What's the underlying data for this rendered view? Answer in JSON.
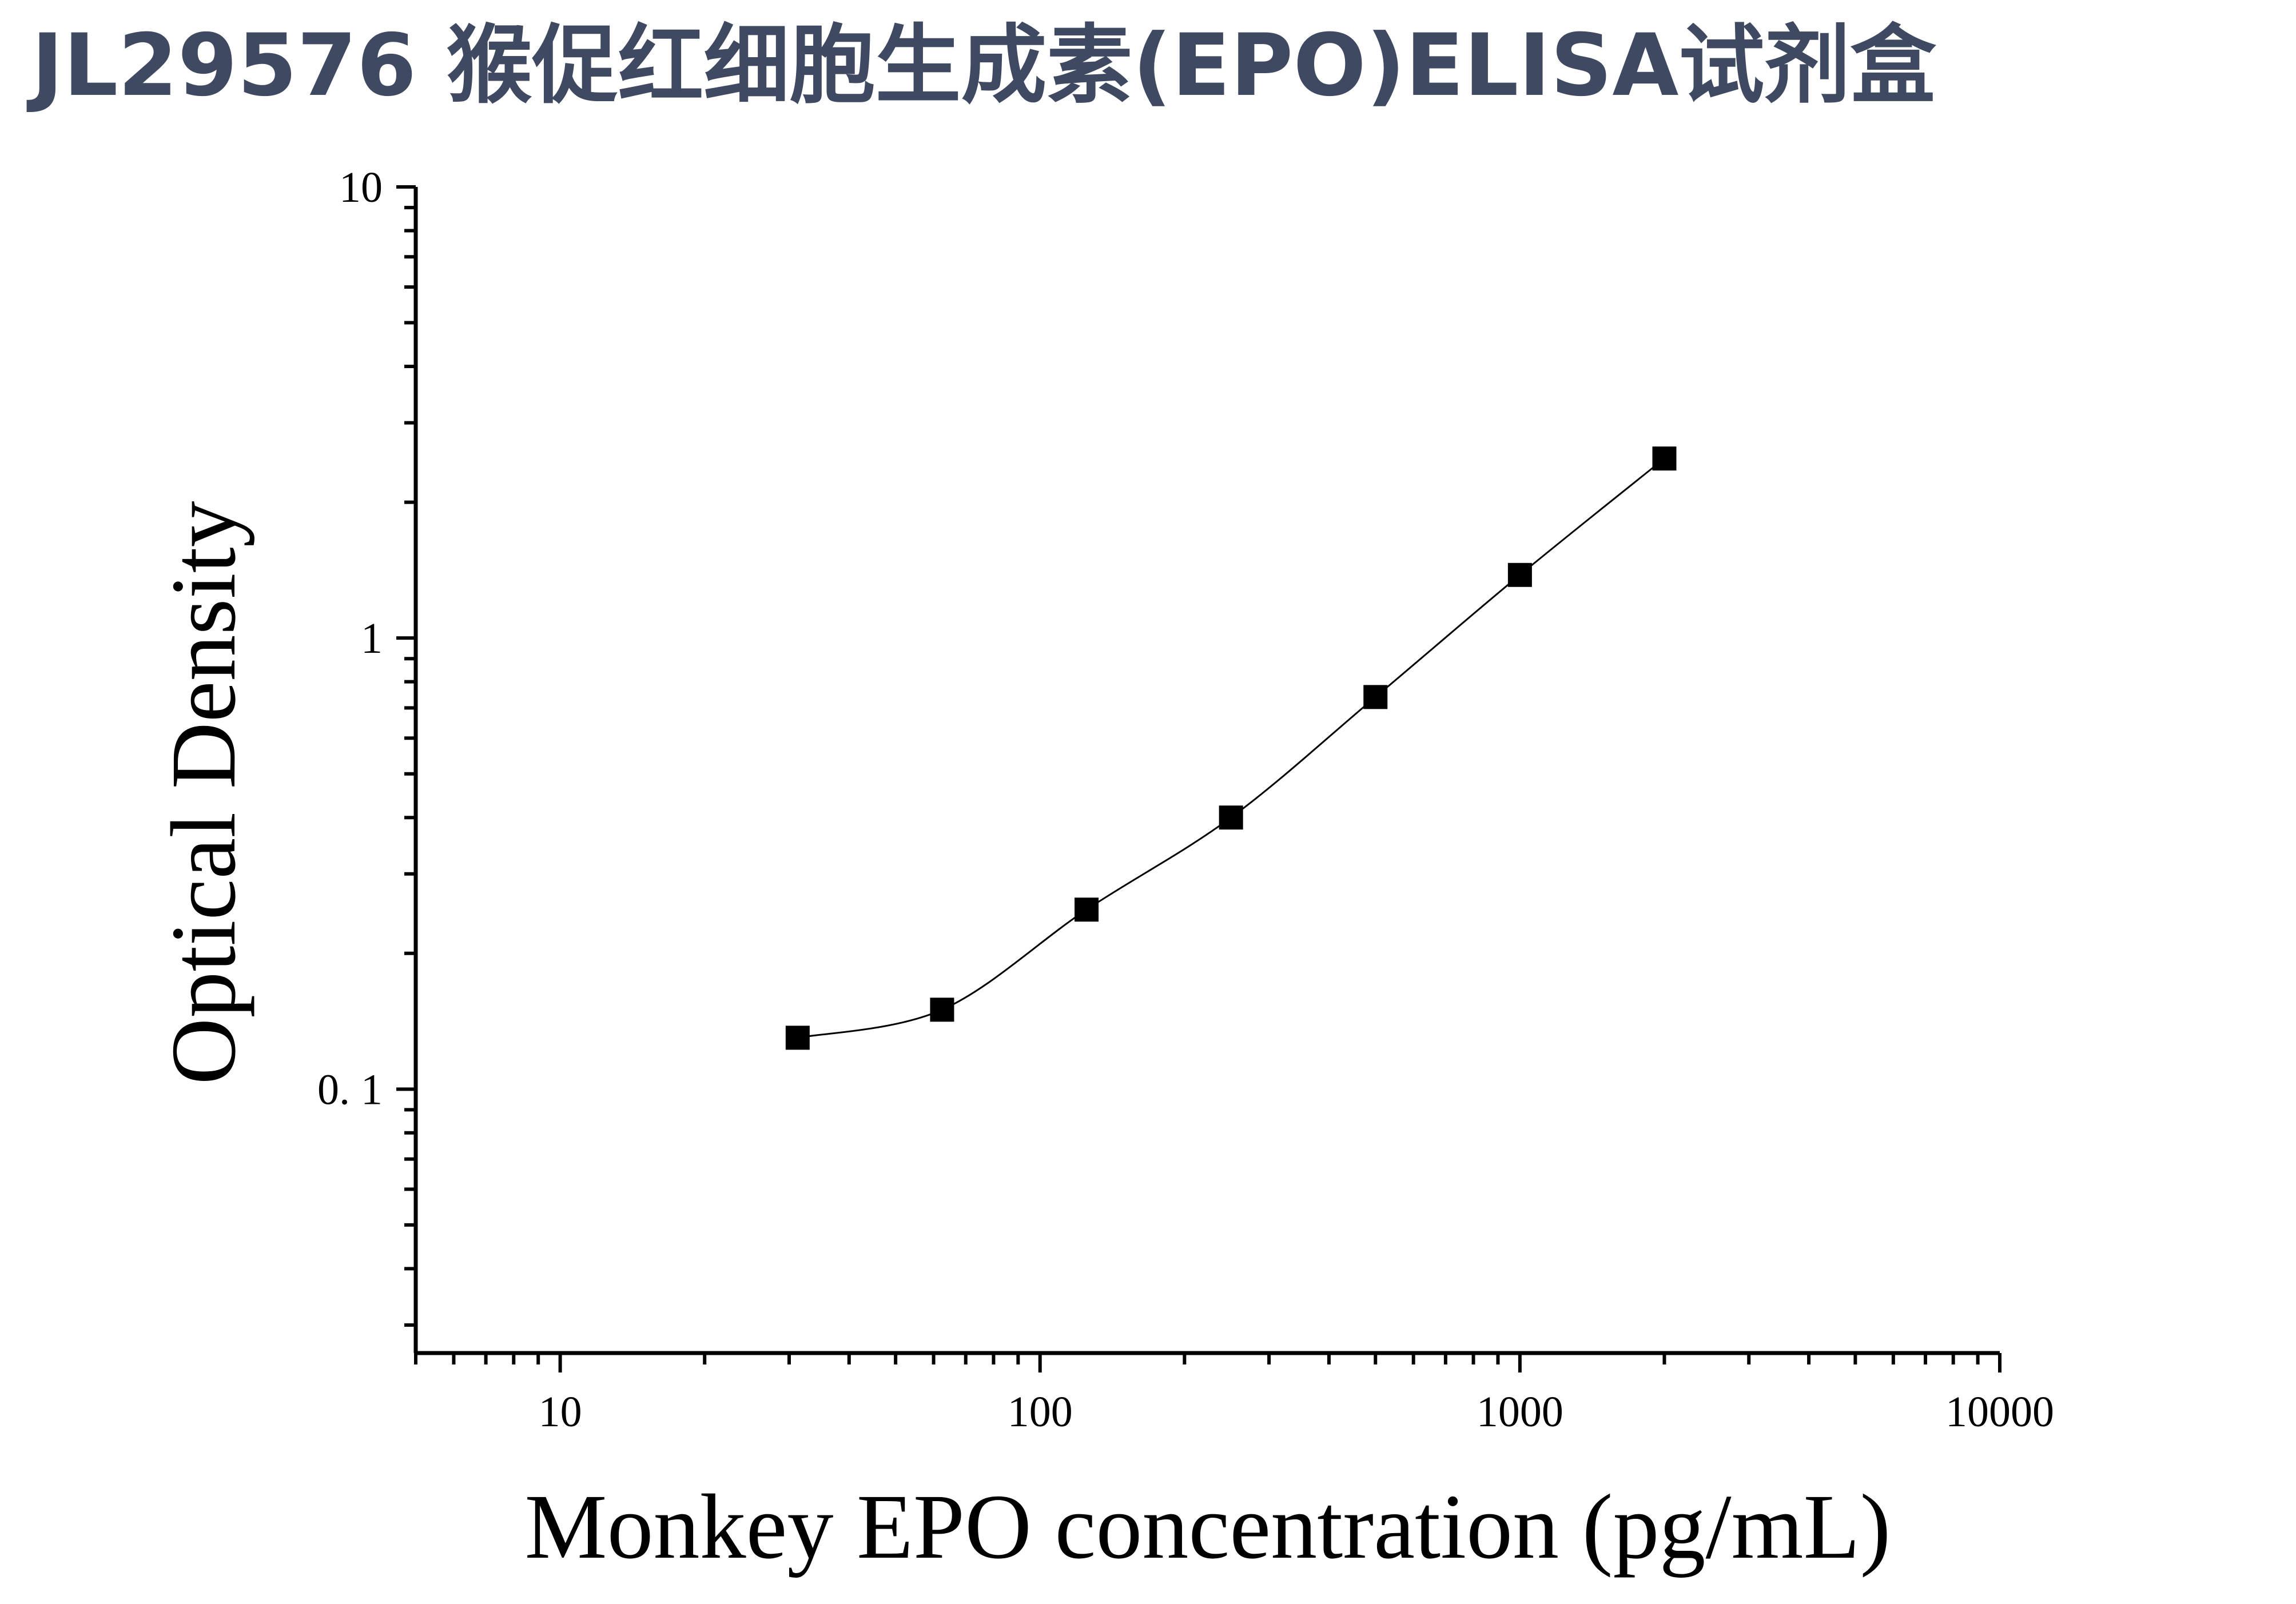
{
  "page_title": "JL29576 猴促红细胞生成素(EPO)ELISA试剂盒",
  "chart_data": {
    "type": "scatter",
    "title": "JL29576 猴促红细胞生成素(EPO)ELISA试剂盒",
    "xlabel": "Monkey EPO concentration (pg/mL)",
    "ylabel": "Optical Density",
    "x_scale": "log",
    "y_scale": "log",
    "xlim": [
      5,
      10000
    ],
    "ylim": [
      0.026,
      10
    ],
    "x_tick_labels": [
      "10",
      "100",
      "1000",
      "10000"
    ],
    "y_tick_labels": [
      "0. 1",
      "1",
      "10"
    ],
    "grid": false,
    "legend": "none",
    "marker": "square",
    "fit_curve": true,
    "series": [
      {
        "x": [
          31.25,
          62.5,
          125,
          250,
          500,
          1000,
          2000
        ],
        "y": [
          0.13,
          0.15,
          0.25,
          0.4,
          0.74,
          1.38,
          2.5
        ]
      }
    ],
    "colors": {
      "title": "#3f4a62",
      "ink": "#000000"
    }
  }
}
